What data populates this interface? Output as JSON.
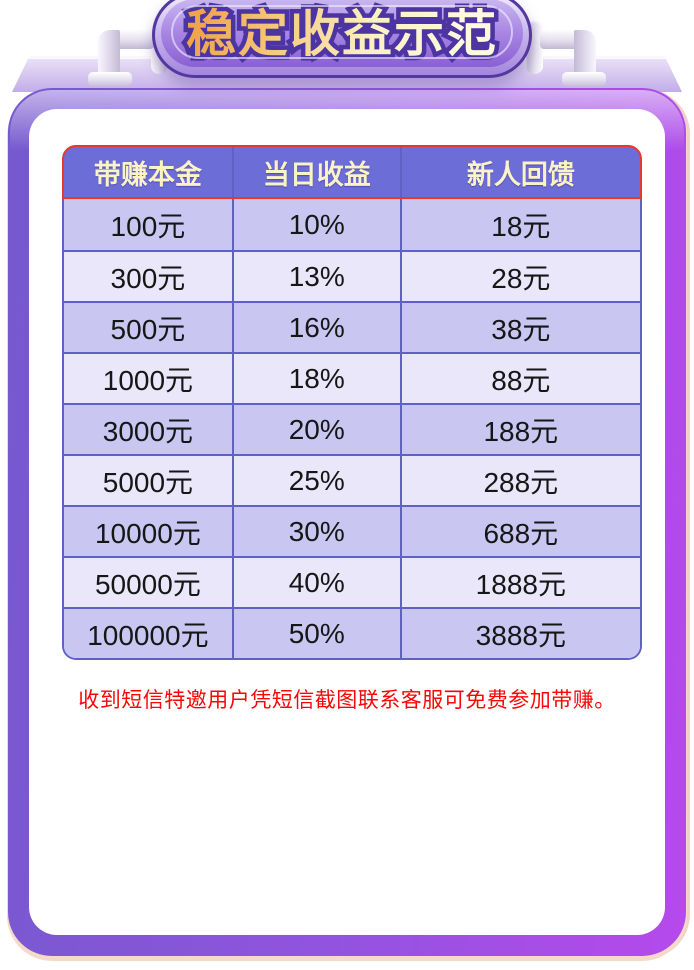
{
  "banner": {
    "title": "稳定收益示范"
  },
  "table": {
    "headers": [
      "带赚本金",
      "当日收益",
      "新人回馈"
    ],
    "rows": [
      [
        "100元",
        "10%",
        "18元"
      ],
      [
        "300元",
        "13%",
        "28元"
      ],
      [
        "500元",
        "16%",
        "38元"
      ],
      [
        "1000元",
        "18%",
        "88元"
      ],
      [
        "3000元",
        "20%",
        "188元"
      ],
      [
        "5000元",
        "25%",
        "288元"
      ],
      [
        "10000元",
        "30%",
        "688元"
      ],
      [
        "50000元",
        "40%",
        "1888元"
      ],
      [
        "100000元",
        "50%",
        "3888元"
      ]
    ]
  },
  "notice": "收到短信特邀用户凭短信截图联系客服可免费参加带赚。",
  "colors": {
    "header_bg": "#6C6DD6",
    "header_text": "#F9F3C6",
    "header_border": "#E6392D",
    "row_odd": "#C9C6F1",
    "row_even": "#E9E7F9",
    "row_border": "#5F61C4",
    "cell_text": "#161616",
    "notice_text": "#FB0505",
    "frame_start": "#7559CE",
    "frame_end": "#B649EC",
    "banner_title_stroke": "#4C34A2"
  }
}
